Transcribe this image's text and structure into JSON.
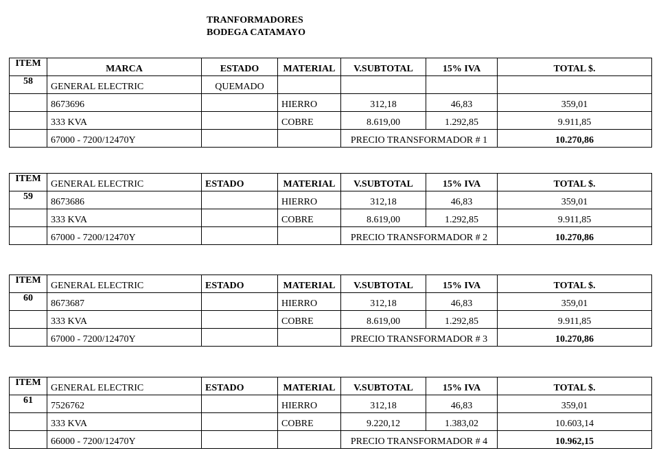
{
  "header": {
    "line1": "TRANFORMADORES",
    "line2": "BODEGA CATAMAYO"
  },
  "columns": {
    "item": "ITEM",
    "marca": "MARCA",
    "estado": "ESTADO",
    "material": "MATERIAL",
    "subtotal": "V.SUBTOTAL",
    "iva": "15% IVA",
    "total": "TOTAL $."
  },
  "tables": [
    {
      "item": "58",
      "marca": "GENERAL ELECTRIC",
      "estado": "QUEMADO",
      "serial": "8673696",
      "kva": "333 KVA",
      "voltaje": "67000 - 7200/12470Y",
      "hierro": {
        "material": "HIERRO",
        "subtotal": "312,18",
        "iva": "46,83",
        "total": "359,01"
      },
      "cobre": {
        "material": "COBRE",
        "subtotal": "8.619,00",
        "iva": "1.292,85",
        "total": "9.911,85"
      },
      "precio_label": "PRECIO TRANSFORMADOR # 1",
      "precio_total": "10.270,86"
    },
    {
      "item": "59",
      "marca": "GENERAL ELECTRIC",
      "serial": "8673686",
      "kva": "333 KVA",
      "voltaje": "67000 - 7200/12470Y",
      "hierro": {
        "material": "HIERRO",
        "subtotal": "312,18",
        "iva": "46,83",
        "total": "359,01"
      },
      "cobre": {
        "material": "COBRE",
        "subtotal": "8.619,00",
        "iva": "1.292,85",
        "total": "9.911,85"
      },
      "precio_label": "PRECIO TRANSFORMADOR # 2",
      "precio_total": "10.270,86"
    },
    {
      "item": "60",
      "marca": "GENERAL ELECTRIC",
      "serial": "8673687",
      "kva": "333 KVA",
      "voltaje": "67000 - 7200/12470Y",
      "hierro": {
        "material": "HIERRO",
        "subtotal": "312,18",
        "iva": "46,83",
        "total": "359,01"
      },
      "cobre": {
        "material": "COBRE",
        "subtotal": "8.619,00",
        "iva": "1.292,85",
        "total": "9.911,85"
      },
      "precio_label": "PRECIO TRANSFORMADOR # 3",
      "precio_total": "10.270,86"
    },
    {
      "item": "61",
      "marca": "GENERAL ELECTRIC",
      "serial": "7526762",
      "kva": "333 KVA",
      "voltaje": "66000 - 7200/12470Y",
      "hierro": {
        "material": "HIERRO",
        "subtotal": "312,18",
        "iva": "46,83",
        "total": "359,01"
      },
      "cobre": {
        "material": "COBRE",
        "subtotal": "9.220,12",
        "iva": "1.383,02",
        "total": "10.603,14"
      },
      "precio_label": "PRECIO TRANSFORMADOR # 4",
      "precio_total": "10.962,15"
    }
  ]
}
